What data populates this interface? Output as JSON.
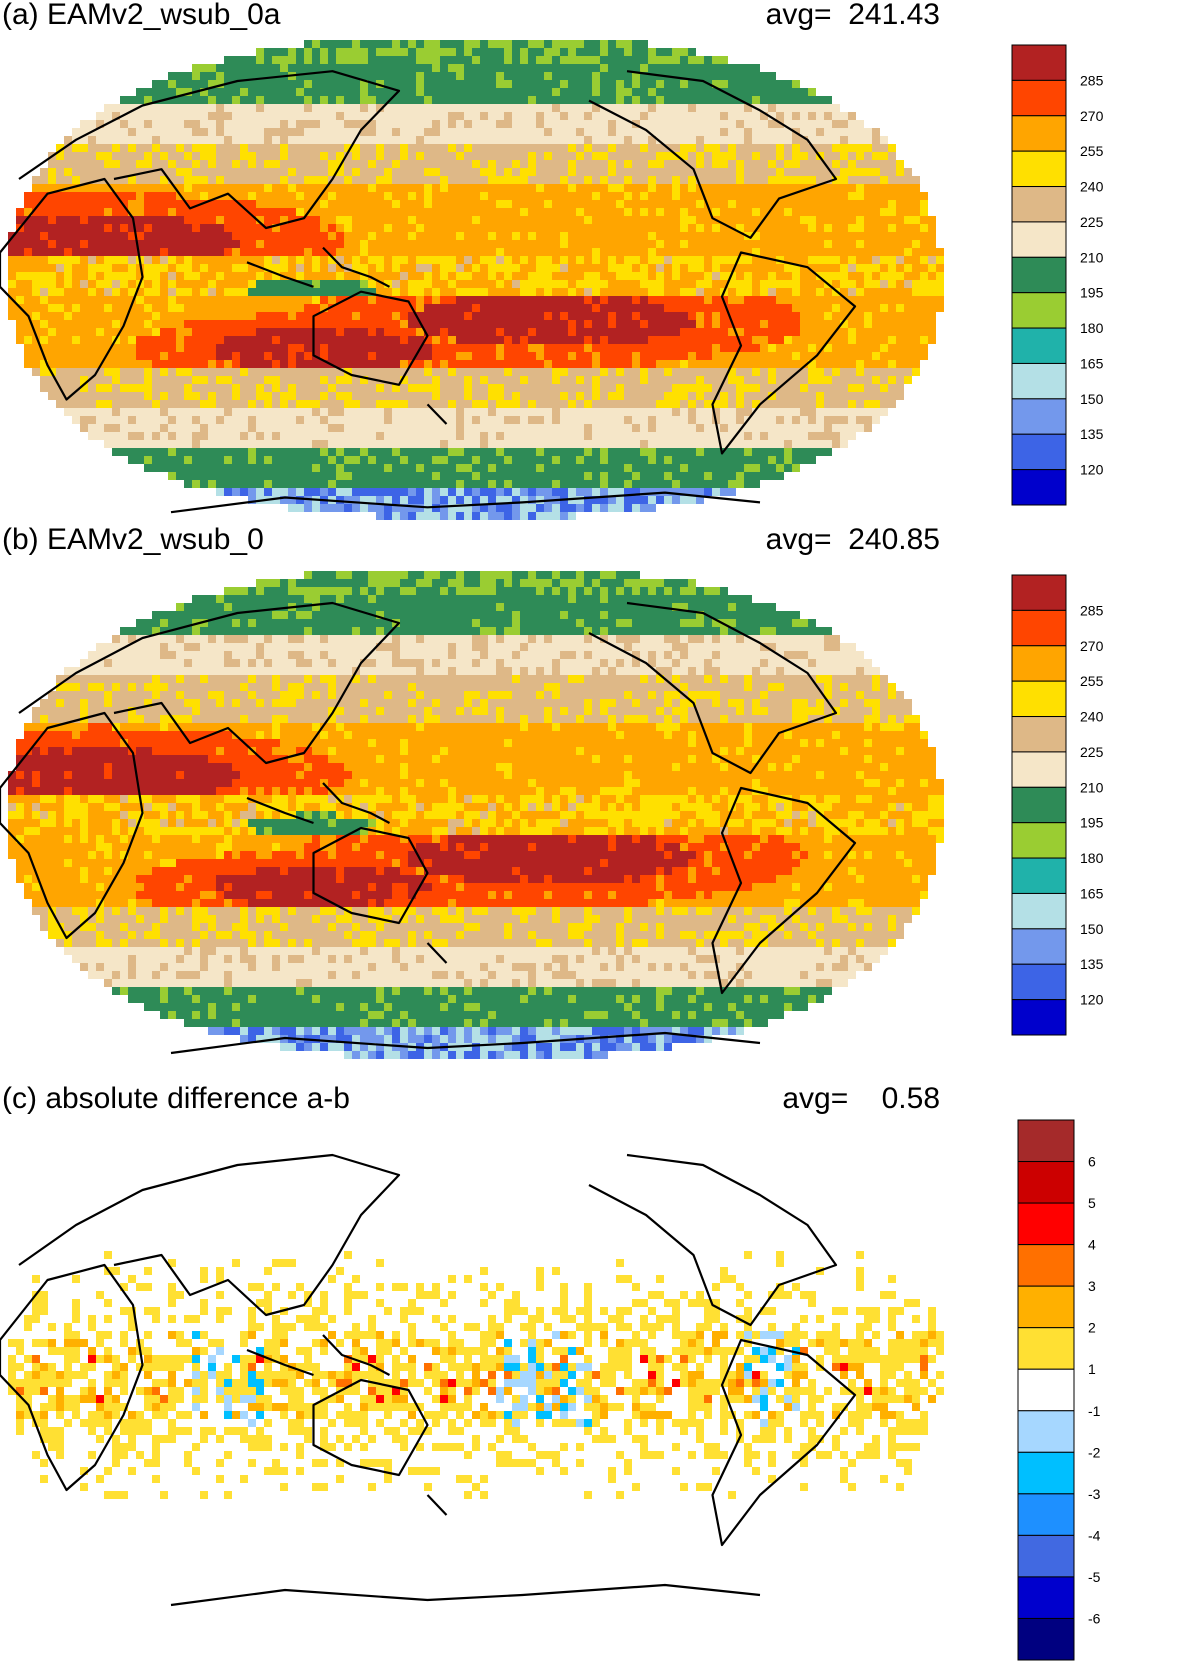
{
  "colors": {
    "abs_palette": [
      "#0000CC",
      "#3D64E6",
      "#7398EC",
      "#B4E0E6",
      "#20B2AA",
      "#9ACD32",
      "#2E8B57",
      "#F5E6C8",
      "#DEB887",
      "#FFE000",
      "#FFA500",
      "#FF4500",
      "#B22222"
    ],
    "diff_palette": [
      "#000080",
      "#0000CD",
      "#4169E1",
      "#1E90FF",
      "#00BFFF",
      "#A6D7FF",
      "#FFFFFF",
      "#FFE033",
      "#FFB000",
      "#FF7000",
      "#FF0000",
      "#CC0000",
      "#A52A2A"
    ],
    "coastline": "#000000"
  },
  "chart_data": [
    {
      "type": "heatmap",
      "title": "(a) EAMv2_wsub_0a",
      "avg_label": "avg=",
      "avg_value": "241.43",
      "projection": "Robinson, Pacific-centred",
      "colorbar": {
        "levels": [
          "120",
          "135",
          "150",
          "165",
          "180",
          "195",
          "210",
          "225",
          "240",
          "255",
          "270",
          "285"
        ]
      },
      "features": {
        "tropics_warm_pool": "255-285",
        "subtropics": "210-255",
        "midlatitudes": "195-210",
        "antarctica": "120-165"
      }
    },
    {
      "type": "heatmap",
      "title": "(b) EAMv2_wsub_0",
      "avg_label": "avg=",
      "avg_value": "240.85",
      "projection": "Robinson, Pacific-centred",
      "colorbar": {
        "levels": [
          "120",
          "135",
          "150",
          "165",
          "180",
          "195",
          "210",
          "225",
          "240",
          "255",
          "270",
          "285"
        ]
      },
      "features": {
        "tropics_warm_pool": "255-285",
        "subtropics": "210-255",
        "midlatitudes": "195-210",
        "antarctica": "120-165"
      }
    },
    {
      "type": "heatmap",
      "title": "(c) absolute difference a-b",
      "avg_label": "avg=",
      "avg_value": "0.58",
      "projection": "Robinson, Pacific-centred",
      "colorbar": {
        "levels": [
          "-6",
          "-5",
          "-4",
          "-3",
          "-2",
          "-1",
          "1",
          "2",
          "3",
          "4",
          "5",
          "6"
        ]
      },
      "features": {
        "tropical_band": "1 to 4",
        "warm_pool_negative_patches": "-1 to -3",
        "extratropics": "-1 to 1"
      }
    }
  ]
}
